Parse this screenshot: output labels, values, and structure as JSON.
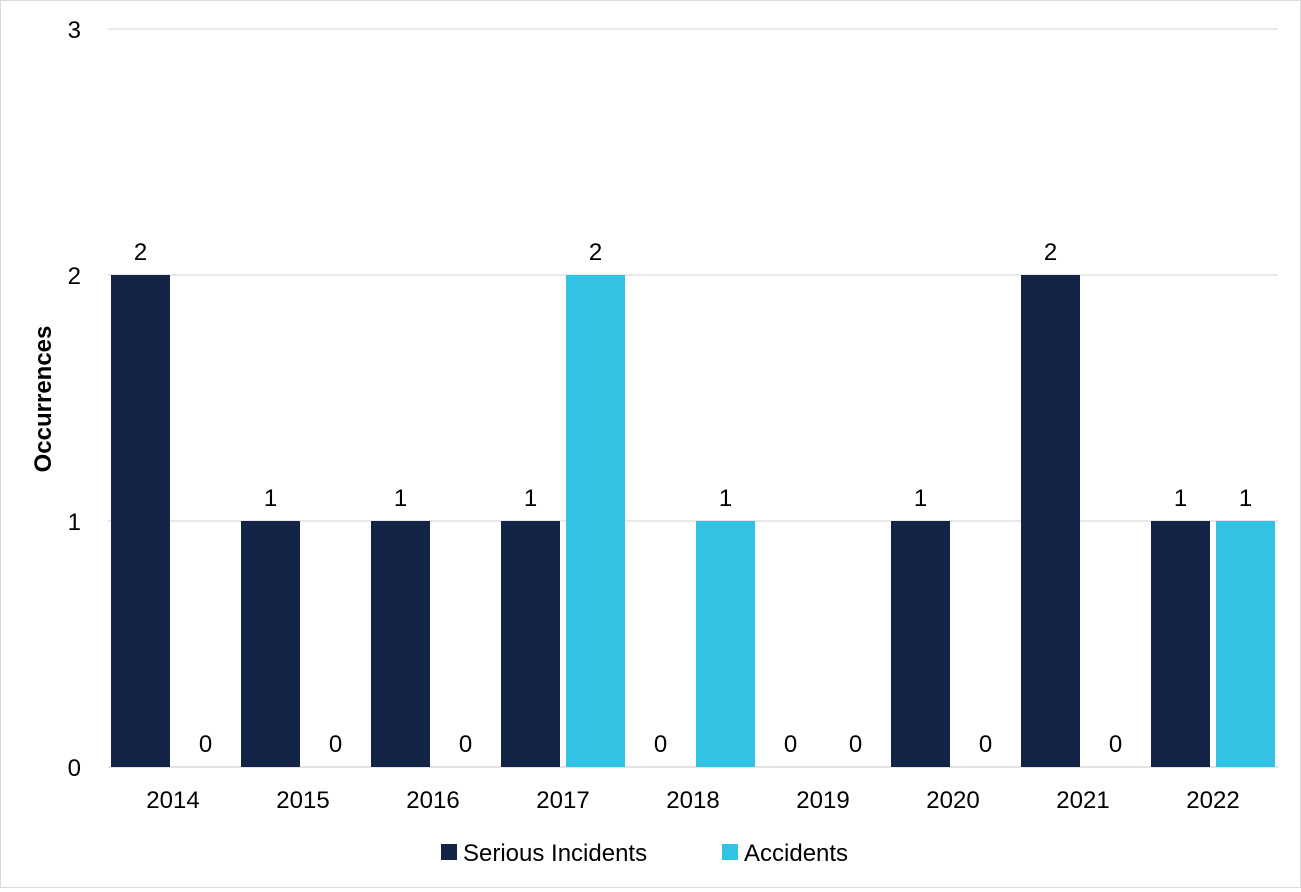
{
  "chart_data": {
    "type": "bar",
    "categories": [
      "2014",
      "2015",
      "2016",
      "2017",
      "2018",
      "2019",
      "2020",
      "2021",
      "2022"
    ],
    "series": [
      {
        "name": "Serious Incidents",
        "color": "#142447",
        "values": [
          2,
          1,
          1,
          1,
          0,
          0,
          1,
          2,
          1
        ]
      },
      {
        "name": "Accidents",
        "color": "#31c2e4",
        "values": [
          0,
          0,
          0,
          2,
          1,
          0,
          0,
          0,
          1
        ]
      }
    ],
    "ylabel": "Occurrences",
    "ylim": [
      0,
      3
    ],
    "yticks": [
      0,
      1,
      2,
      3
    ],
    "grid": true,
    "legend": "bottom-center",
    "data_labels": true
  }
}
